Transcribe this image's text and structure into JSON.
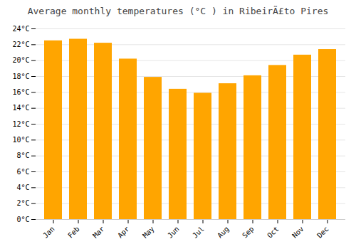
{
  "chart_data": {
    "type": "bar",
    "title": "Average monthly temperatures (°C ) in RibeirÃ£to Pires",
    "categories": [
      "Jan",
      "Feb",
      "Mar",
      "Apr",
      "May",
      "Jun",
      "Jul",
      "Aug",
      "Sep",
      "Oct",
      "Nov",
      "Dec"
    ],
    "values": [
      22.5,
      22.7,
      22.2,
      20.2,
      17.9,
      16.4,
      15.9,
      17.1,
      18.1,
      19.4,
      20.7,
      21.4
    ],
    "color": "#FFA500",
    "ylim": [
      0,
      24
    ],
    "yticks": [
      {
        "value": 0,
        "label": "0°C"
      },
      {
        "value": 2,
        "label": "2°C"
      },
      {
        "value": 4,
        "label": "4°C"
      },
      {
        "value": 6,
        "label": "6°C"
      },
      {
        "value": 8,
        "label": "8°C"
      },
      {
        "value": 10,
        "label": "10°C"
      },
      {
        "value": 12,
        "label": "12°C"
      },
      {
        "value": 14,
        "label": "14°C"
      },
      {
        "value": 16,
        "label": "16°C"
      },
      {
        "value": 18,
        "label": "18°C"
      },
      {
        "value": 20,
        "label": "20°C"
      },
      {
        "value": 22,
        "label": "22°C"
      },
      {
        "value": 24,
        "label": "24°C"
      }
    ],
    "grid": true
  }
}
